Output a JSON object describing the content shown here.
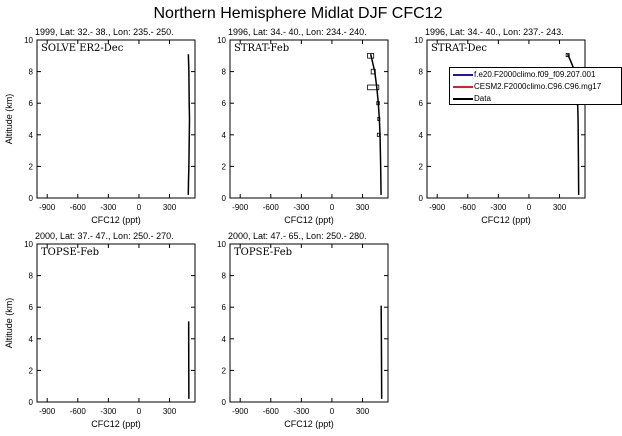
{
  "title": "Northern Hemisphere Midlat DJF CFC12",
  "legend": [
    {
      "label": "f.e20.F2000climo.f09_f09.207.001",
      "color": "#1a1aa6"
    },
    {
      "label": "CESM2.F2000climo.C96.C96.mg17",
      "color": "#e02020"
    },
    {
      "label": "Data",
      "color": "#000000"
    }
  ],
  "chart_data": [
    {
      "type": "line",
      "header": "1999, Lat: 32.- 38., Lon: 235.- 250.",
      "inset": "SOLVE ER2-Dec",
      "xlabel": "CFC12 (ppt)",
      "ylabel": "Altitude (km)",
      "xlim": [
        -1000,
        550
      ],
      "ylim": [
        0,
        10
      ],
      "xticks": [
        -900,
        -600,
        -300,
        0,
        300
      ],
      "yticks": [
        0,
        2,
        4,
        6,
        8,
        10
      ],
      "series": [
        {
          "color": "#000000",
          "x": [
            485,
            490,
            493,
            496,
            494,
            490,
            486,
            484
          ],
          "y": [
            9.1,
            8.0,
            6.0,
            5.0,
            4.0,
            2.0,
            1.0,
            0.2
          ]
        }
      ],
      "boxes": []
    },
    {
      "type": "line",
      "header": "1996, Lat: 34.- 40., Lon: 234.- 240.",
      "inset": "STRAT-Feb",
      "xlabel": "CFC12 (ppt)",
      "ylabel": "",
      "xlim": [
        -1000,
        550
      ],
      "ylim": [
        0,
        10
      ],
      "xticks": [
        -900,
        -600,
        -300,
        0,
        300
      ],
      "yticks": [
        0,
        2,
        4,
        6,
        8,
        10
      ],
      "series": [
        {
          "color": "#000000",
          "x": [
            380,
            420,
            440,
            455,
            465,
            472,
            478,
            482
          ],
          "y": [
            9.1,
            8.0,
            7.0,
            6.0,
            5.0,
            4.0,
            2.0,
            0.2
          ]
        }
      ],
      "boxes": [
        {
          "x0": 350,
          "x1": 410,
          "y0": 8.85,
          "y1": 9.15
        },
        {
          "x0": 385,
          "x1": 425,
          "y0": 7.85,
          "y1": 8.15
        },
        {
          "x0": 350,
          "x1": 460,
          "y0": 6.85,
          "y1": 7.15
        },
        {
          "x0": 440,
          "x1": 465,
          "y0": 5.9,
          "y1": 6.1
        },
        {
          "x0": 450,
          "x1": 470,
          "y0": 4.9,
          "y1": 5.1
        },
        {
          "x0": 445,
          "x1": 465,
          "y0": 3.9,
          "y1": 4.1
        }
      ]
    },
    {
      "type": "line",
      "header": "1996, Lat: 34.- 40., Lon: 237.- 243.",
      "inset": "STRAT-Dec",
      "xlabel": "CFC12 (ppt)",
      "ylabel": "",
      "xlim": [
        -1000,
        550
      ],
      "ylim": [
        0,
        10
      ],
      "xticks": [
        -900,
        -600,
        -300,
        0,
        300
      ],
      "yticks": [
        0,
        2,
        4,
        6,
        8,
        10
      ],
      "series": [
        {
          "color": "#000000",
          "x": [
            380,
            420,
            450,
            470,
            478,
            482,
            486,
            488
          ],
          "y": [
            9.1,
            8.5,
            8.0,
            7.0,
            6.0,
            5.0,
            2.0,
            0.2
          ]
        }
      ],
      "boxes": [
        {
          "x0": 365,
          "x1": 395,
          "y0": 8.95,
          "y1": 9.15
        },
        {
          "x0": 465,
          "x1": 485,
          "y0": 5.9,
          "y1": 6.1
        }
      ]
    },
    {
      "type": "line",
      "header": "2000, Lat: 37.- 47., Lon: 250.- 270.",
      "inset": "TOPSE-Feb",
      "xlabel": "CFC12 (ppt)",
      "ylabel": "Altitude (km)",
      "xlim": [
        -1000,
        550
      ],
      "ylim": [
        0,
        10
      ],
      "xticks": [
        -900,
        -600,
        -300,
        0,
        300
      ],
      "yticks": [
        0,
        2,
        4,
        6,
        8,
        10
      ],
      "series": [
        {
          "color": "#000000",
          "x": [
            488,
            488,
            489,
            490
          ],
          "y": [
            5.1,
            4.0,
            2.0,
            0.2
          ]
        }
      ],
      "boxes": []
    },
    {
      "type": "line",
      "header": "2000, Lat: 47.- 65., Lon: 250.- 280.",
      "inset": "TOPSE-Feb",
      "xlabel": "CFC12 (ppt)",
      "ylabel": "",
      "xlim": [
        -1000,
        550
      ],
      "ylim": [
        0,
        10
      ],
      "xticks": [
        -900,
        -600,
        -300,
        0,
        300
      ],
      "yticks": [
        0,
        2,
        4,
        6,
        8,
        10
      ],
      "series": [
        {
          "color": "#000000",
          "x": [
            483,
            484,
            486,
            488
          ],
          "y": [
            6.1,
            5.0,
            3.0,
            0.2
          ]
        }
      ],
      "boxes": []
    }
  ]
}
